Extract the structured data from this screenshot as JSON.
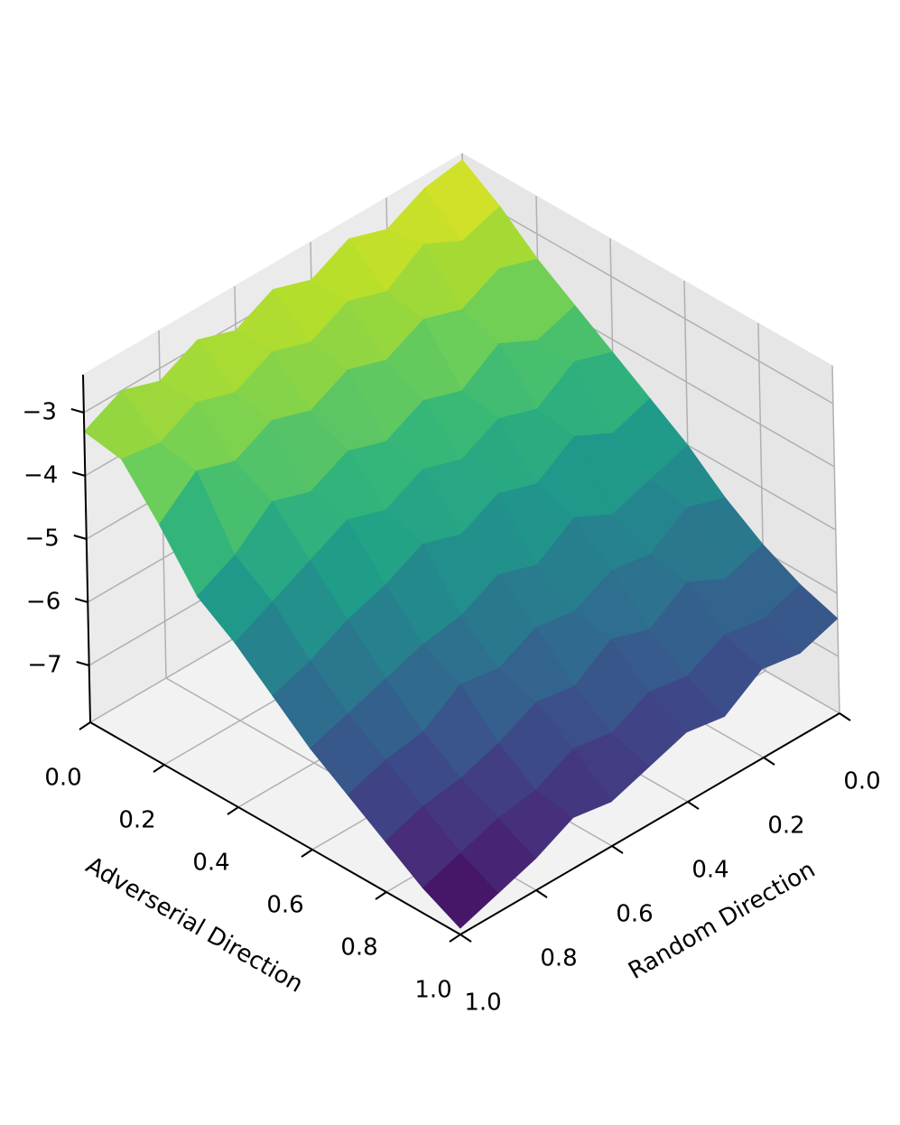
{
  "chart_data": {
    "type": "surface",
    "xlabel": "Adverserial Direction",
    "ylabel": "Random Direction",
    "x": [
      0,
      0.1,
      0.2,
      0.3,
      0.4,
      0.5,
      0.6,
      0.7,
      0.8,
      0.9,
      1
    ],
    "y": [
      0,
      0.1,
      0.2,
      0.3,
      0.4,
      0.5,
      0.6,
      0.7,
      0.8,
      0.9,
      1
    ],
    "z": [
      [
        -2.5,
        -2.6,
        -2.9,
        -2.7,
        -3.0,
        -2.8,
        -3.1,
        -2.9,
        -3.2,
        -3.0,
        -3.3
      ],
      [
        -2.9,
        -3.1,
        -2.8,
        -3.2,
        -3.0,
        -3.3,
        -3.1,
        -3.4,
        -3.2,
        -3.5,
        -3.4
      ],
      [
        -3.4,
        -3.2,
        -3.5,
        -3.3,
        -3.6,
        -3.4,
        -3.7,
        -3.5,
        -3.8,
        -3.6,
        -4.1
      ],
      [
        -3.8,
        -4.0,
        -3.7,
        -4.1,
        -3.9,
        -4.2,
        -4.0,
        -4.3,
        -4.1,
        -4.6,
        -4.9
      ],
      [
        -4.2,
        -4.0,
        -4.4,
        -4.2,
        -4.5,
        -4.3,
        -4.6,
        -4.4,
        -4.7,
        -5.0,
        -5.3
      ],
      [
        -4.6,
        -4.8,
        -4.5,
        -4.9,
        -4.7,
        -5.0,
        -4.8,
        -5.1,
        -5.3,
        -5.6,
        -5.8
      ],
      [
        -5.0,
        -5.2,
        -5.4,
        -5.1,
        -5.5,
        -5.3,
        -5.6,
        -5.7,
        -5.9,
        -6.1,
        -6.3
      ],
      [
        -5.5,
        -5.3,
        -5.7,
        -5.6,
        -5.9,
        -5.8,
        -6.1,
        -6.0,
        -6.4,
        -6.5,
        -6.7
      ],
      [
        -5.9,
        -6.1,
        -5.8,
        -6.2,
        -6.0,
        -6.4,
        -6.3,
        -6.6,
        -6.8,
        -6.9,
        -7.1
      ],
      [
        -6.2,
        -6.4,
        -6.3,
        -6.6,
        -6.5,
        -6.8,
        -6.7,
        -7.0,
        -7.1,
        -7.3,
        -7.5
      ],
      [
        -6.4,
        -6.6,
        -6.5,
        -6.9,
        -6.8,
        -7.0,
        -7.2,
        -7.1,
        -7.4,
        -7.6,
        -7.8
      ]
    ],
    "xlim": [
      0,
      1
    ],
    "ylim": [
      0,
      1
    ],
    "zlim": [
      -7.9,
      -2.4
    ],
    "xticks": [
      {
        "value": 0,
        "label": "0.0"
      },
      {
        "value": 0.2,
        "label": "0.2"
      },
      {
        "value": 0.4,
        "label": "0.4"
      },
      {
        "value": 0.6,
        "label": "0.6"
      },
      {
        "value": 0.8,
        "label": "0.8"
      },
      {
        "value": 1,
        "label": "1.0"
      }
    ],
    "yticks": [
      {
        "value": 0,
        "label": "0.0"
      },
      {
        "value": 0.2,
        "label": "0.2"
      },
      {
        "value": 0.4,
        "label": "0.4"
      },
      {
        "value": 0.6,
        "label": "0.6"
      },
      {
        "value": 0.8,
        "label": "0.8"
      },
      {
        "value": 1,
        "label": "1.0"
      }
    ],
    "zticks": [
      {
        "value": -3,
        "label": "−3"
      },
      {
        "value": -4,
        "label": "−4"
      },
      {
        "value": -5,
        "label": "−5"
      },
      {
        "value": -6,
        "label": "−6"
      },
      {
        "value": -7,
        "label": "−7"
      }
    ],
    "colormap": "viridis",
    "grid": true
  }
}
